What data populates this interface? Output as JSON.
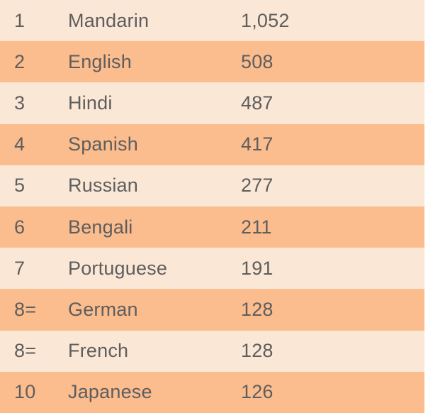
{
  "table": {
    "rows": [
      {
        "rank": "1",
        "language": "Mandarin",
        "speakers": "1,052"
      },
      {
        "rank": "2",
        "language": "English",
        "speakers": "508"
      },
      {
        "rank": "3",
        "language": "Hindi",
        "speakers": "487"
      },
      {
        "rank": "4",
        "language": "Spanish",
        "speakers": "417"
      },
      {
        "rank": "5",
        "language": "Russian",
        "speakers": "277"
      },
      {
        "rank": "6",
        "language": "Bengali",
        "speakers": "211"
      },
      {
        "rank": "7",
        "language": "Portuguese",
        "speakers": "191"
      },
      {
        "rank": "8=",
        "language": "German",
        "speakers": "128"
      },
      {
        "rank": "8=",
        "language": "French",
        "speakers": "128"
      },
      {
        "rank": "10",
        "language": "Japanese",
        "speakers": "126"
      }
    ]
  },
  "colors": {
    "row_light": "#fbe7d6",
    "row_dark": "#fbbc8e",
    "text": "#5e5e5e"
  }
}
